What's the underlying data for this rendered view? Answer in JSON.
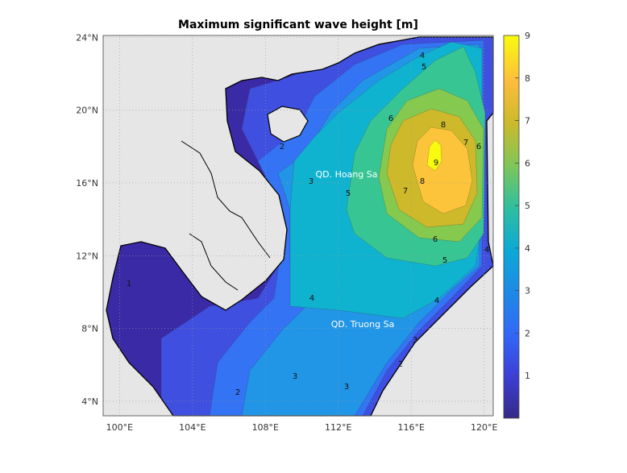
{
  "chart_data": {
    "type": "heatmap",
    "subtype": "filled-contour-map",
    "title": "Maximum significant wave height [m]",
    "xlim": [
      99.1,
      120.5
    ],
    "ylim": [
      3.2,
      24.1
    ],
    "x_ticks": [
      "100°E",
      "104°E",
      "108°E",
      "112°E",
      "116°E",
      "120°E"
    ],
    "x_tick_values": [
      100,
      104,
      108,
      112,
      116,
      120
    ],
    "y_ticks": [
      "4°N",
      "8°N",
      "12°N",
      "16°N",
      "20°N",
      "24°N"
    ],
    "y_tick_values": [
      4,
      8,
      12,
      16,
      20,
      24
    ],
    "grid": true,
    "colorbar": {
      "range": [
        0,
        9
      ],
      "ticks": [
        "1",
        "2",
        "3",
        "4",
        "5",
        "6",
        "7",
        "8",
        "9"
      ],
      "colormap": "parula",
      "placement": "right"
    },
    "contour_levels": [
      1,
      2,
      3,
      4,
      5,
      6,
      7,
      8,
      9
    ],
    "max_region": {
      "lon": 117.5,
      "lat": 17.6,
      "value_above": 9
    },
    "contour_labels": [
      "1",
      "2",
      "2",
      "2",
      "3",
      "3",
      "3",
      "3",
      "4",
      "4",
      "4",
      "4",
      "5",
      "5",
      "5",
      "6",
      "6",
      "6",
      "7",
      "7",
      "8",
      "8",
      "9"
    ],
    "annotations": [
      "QD. Hoang Sa",
      "QD. Truong Sa"
    ],
    "colors": {
      "land": "#e6e6e6",
      "level_0": "#3b2aa6",
      "level_1": "#3f4fe0",
      "level_2": "#3373f4",
      "level_3": "#2196e6",
      "level_4": "#10b3cf",
      "level_5": "#38c594",
      "level_6": "#86c94f",
      "level_7": "#cdb92a",
      "level_8": "#fcc43a",
      "level_9": "#f8fa0f"
    }
  }
}
